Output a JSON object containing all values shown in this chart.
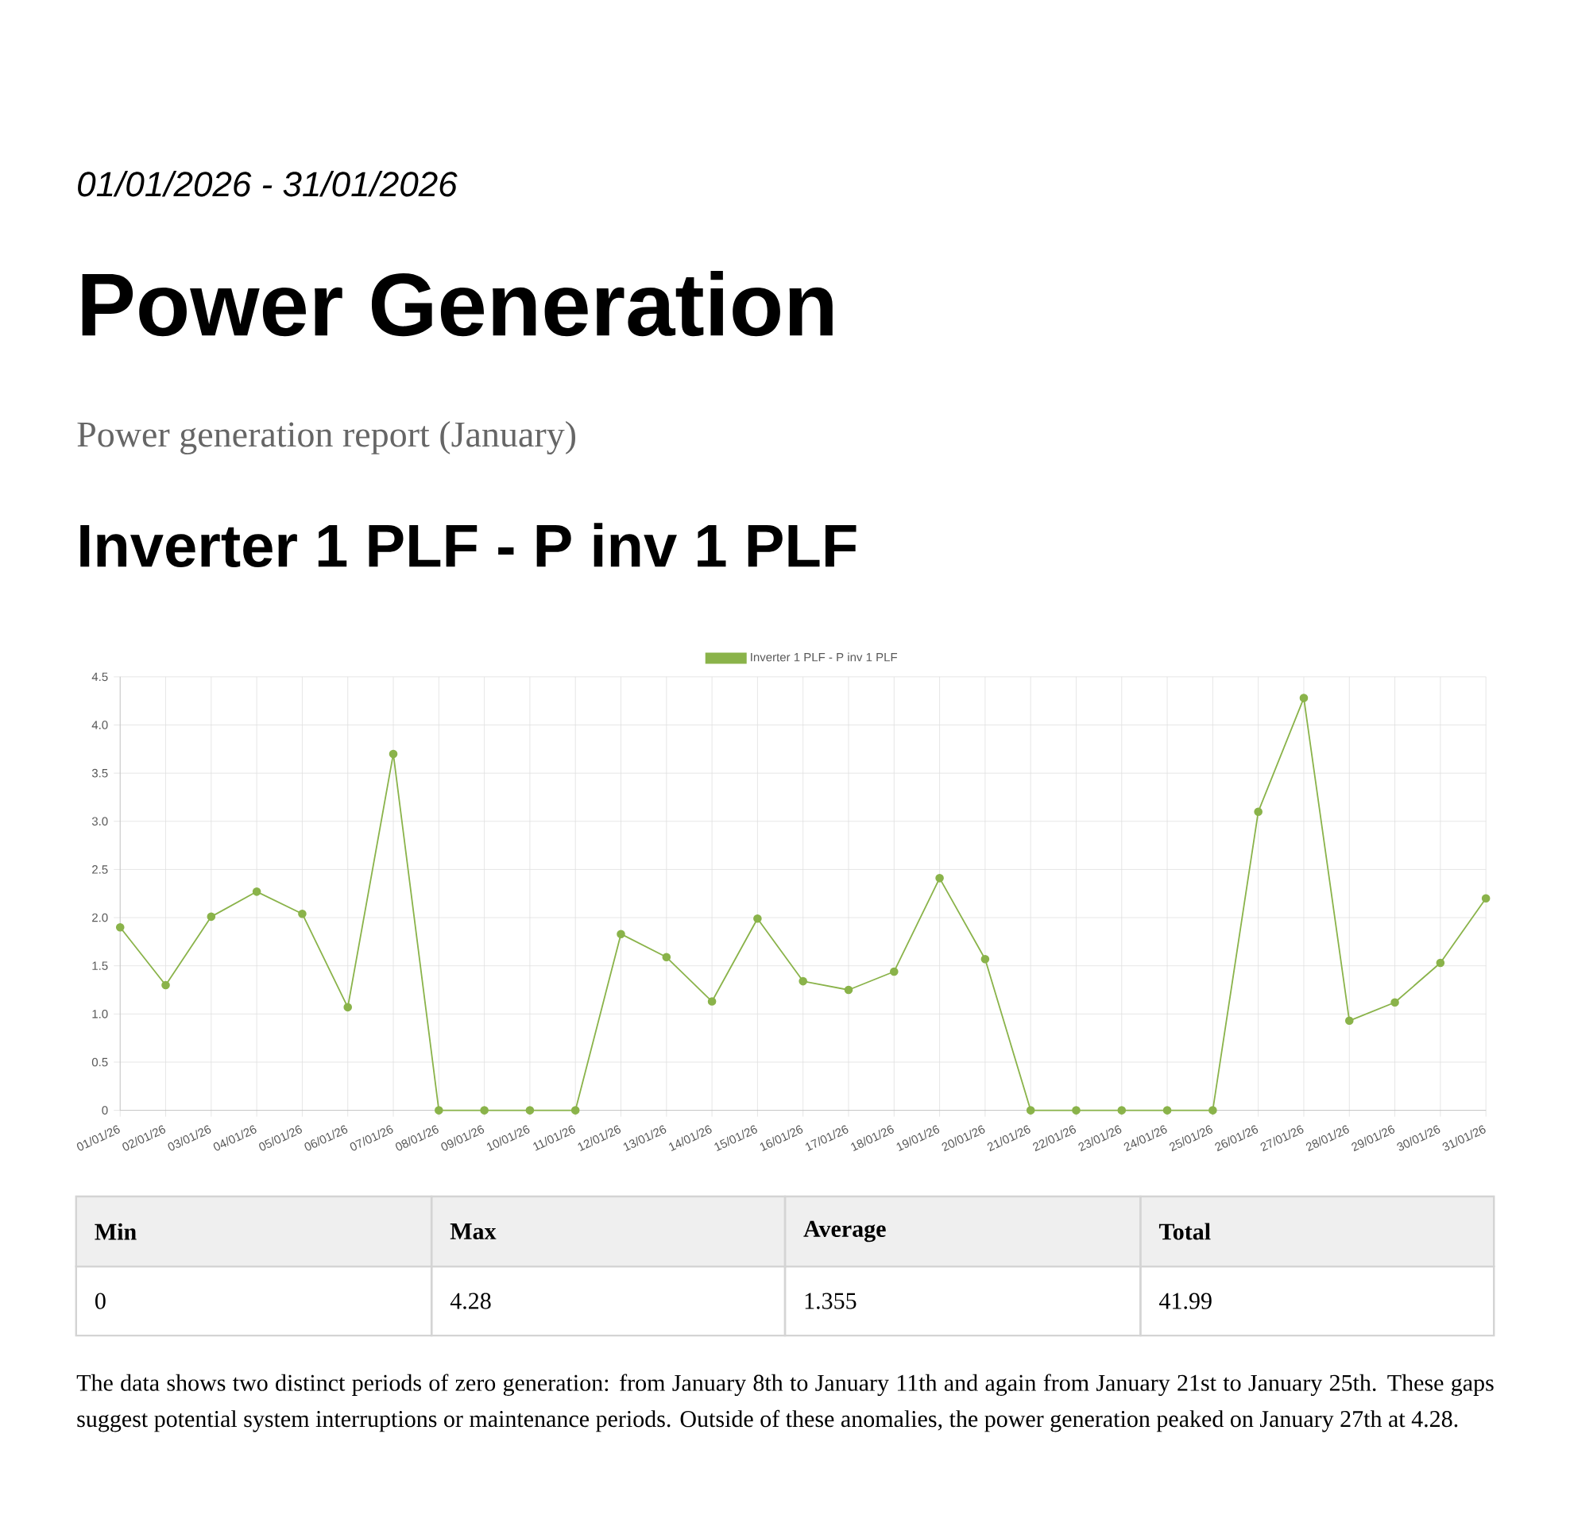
{
  "chart_data": {
    "type": "line",
    "title": "Power Generation",
    "subtitle": "Power generation report (January)",
    "annotations": [
      "01/01/2026 - 31/01/2026",
      "Inverter 1 PLF - P inv 1 PLF",
      "Min",
      "Max",
      "Average",
      "Total",
      "0",
      "4.28",
      "1.355",
      "41.99",
      "The data shows two distinct periods of zero generation: from January 8th to January 11th and again from January 21st to January 25th. These gaps suggest potential system interruptions or maintenance periods. Outside of these anomalies, the power generation peaked on January 27th at 4.28."
    ],
    "categories": [
      "01/01/26",
      "02/01/26",
      "03/01/26",
      "04/01/26",
      "05/01/26",
      "06/01/26",
      "07/01/26",
      "08/01/26",
      "09/01/26",
      "10/01/26",
      "11/01/26",
      "12/01/26",
      "13/01/26",
      "14/01/26",
      "15/01/26",
      "16/01/26",
      "17/01/26",
      "18/01/26",
      "19/01/26",
      "20/01/26",
      "21/01/26",
      "22/01/26",
      "23/01/26",
      "24/01/26",
      "25/01/26",
      "26/01/26",
      "27/01/26",
      "28/01/26",
      "29/01/26",
      "30/01/26",
      "31/01/26"
    ],
    "series": [
      {
        "name": "Inverter 1 PLF - P inv 1 PLF",
        "color": "#8ab34a",
        "values": [
          1.9,
          1.3,
          2.01,
          2.27,
          2.04,
          1.07,
          3.7,
          0,
          0,
          0,
          0,
          1.83,
          1.59,
          1.13,
          1.99,
          1.34,
          1.25,
          1.44,
          2.41,
          1.57,
          0,
          0,
          0,
          0,
          0,
          3.1,
          4.28,
          0.93,
          1.12,
          1.53,
          2.2
        ]
      }
    ],
    "ylim": [
      0,
      4.5
    ],
    "yticks": [
      0,
      0.5,
      {
        "value": 1,
        "label": "1.0"
      },
      1.5,
      {
        "value": 2,
        "label": "2.0"
      },
      2.5,
      {
        "value": 3,
        "label": "3.0"
      },
      3.5,
      {
        "value": 4,
        "label": "4.0"
      },
      4.5
    ],
    "grid": true,
    "legend": "top",
    "marker": "circle",
    "line_style": "solid"
  }
}
